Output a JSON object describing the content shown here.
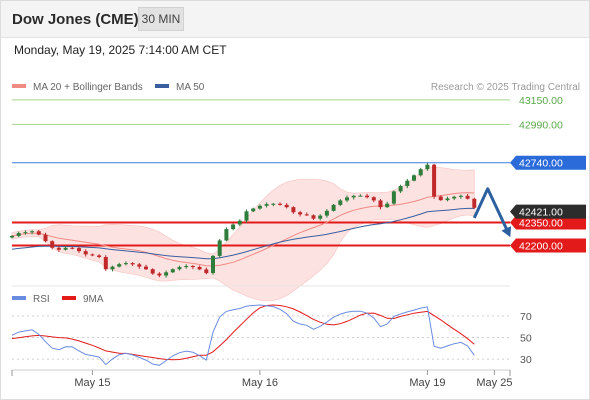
{
  "header": {
    "title": "Dow Jones (CME)",
    "timeframe": "30 MIN",
    "datetime": "Monday, May 19, 2025 7:14:00 AM CET"
  },
  "colors": {
    "ma20": "#f08a84",
    "ma50": "#3a5f9f",
    "bollinger_fill": "#fde2e2",
    "up_candle": "#2f7d3a",
    "down_candle": "#c0282a",
    "resistance_line": "#a3d48f",
    "pivot_line": "#3f7fe0",
    "pivot_label_bg": "#2a6ad9",
    "support_line": "#e21a1a",
    "support_label_bg": "#e21a1a",
    "current_price_bg": "#2c2c2c",
    "rsi_line": "#6a8ce0",
    "rsi_ma_line": "#e21a1a",
    "arrow": "#2b5fa0"
  },
  "chart_data": [
    {
      "type": "candlestick",
      "legend": {
        "items": [
          {
            "label": "MA 20 + Bollinger Bands",
            "color": "#f08a84"
          },
          {
            "label": "MA 50",
            "color": "#3a5f9f"
          }
        ],
        "placement": "top-left"
      },
      "watermark": "Research © 2025 Trading Central",
      "ylim": [
        42040,
        43280
      ],
      "x_ticks": [
        {
          "label": "May 15",
          "index": 12
        },
        {
          "label": "May 16",
          "index": 37
        },
        {
          "label": "May 19",
          "index": 62
        },
        {
          "label": "May 25",
          "index": 72
        }
      ],
      "levels": [
        {
          "label": "43150.00",
          "value": 43150,
          "kind": "resistance"
        },
        {
          "label": "42990.00",
          "value": 42990,
          "kind": "resistance"
        },
        {
          "label": "42740.00",
          "value": 42740,
          "kind": "pivot"
        },
        {
          "label": "42350.00",
          "value": 42350,
          "kind": "support"
        },
        {
          "label": "42200.00",
          "value": 42200,
          "kind": "support"
        }
      ],
      "current_price": {
        "label": "42421.00",
        "value": 42421
      },
      "forecast_path": [
        {
          "index": 69,
          "value": 42380
        },
        {
          "index": 71,
          "value": 42570
        },
        {
          "index": 74,
          "value": 42290
        }
      ],
      "closes": [
        42262,
        42281,
        42287,
        42293,
        42271,
        42228,
        42185,
        42172,
        42185,
        42183,
        42163,
        42142,
        42135,
        42125,
        42045,
        42062,
        42078,
        42085,
        42077,
        42062,
        42045,
        42017,
        42004,
        42025,
        42045,
        42059,
        42066,
        42060,
        42044,
        42020,
        42132,
        42233,
        42307,
        42337,
        42362,
        42423,
        42441,
        42459,
        42470,
        42472,
        42465,
        42450,
        42417,
        42403,
        42397,
        42375,
        42395,
        42426,
        42465,
        42494,
        42514,
        42524,
        42525,
        42515,
        42494,
        42450,
        42473,
        42553,
        42588,
        42623,
        42658,
        42698,
        42727,
        42519,
        42496,
        42507,
        42518,
        42524,
        42505,
        42446
      ]
    },
    {
      "type": "line",
      "legend": {
        "items": [
          {
            "label": "RSI",
            "color": "#6a8ce0"
          },
          {
            "label": "9MA",
            "color": "#e21a1a"
          }
        ],
        "placement": "top-left"
      },
      "ylim": [
        20,
        80
      ],
      "y_ticks": [
        70,
        50,
        30
      ],
      "series": [
        {
          "name": "RSI",
          "values": [
            52.0,
            55.0,
            56.1,
            57.1,
            52.9,
            46.1,
            40.2,
            38.7,
            41.4,
            41.3,
            37.5,
            34.3,
            33.3,
            31.9,
            25.0,
            30.2,
            34.1,
            35.4,
            33.9,
            31.6,
            29.1,
            25.5,
            24.3,
            28.7,
            33.0,
            36.0,
            37.4,
            36.4,
            33.2,
            29.1,
            54.9,
            69.0,
            74.1,
            75.6,
            76.8,
            79.0,
            79.5,
            80.0,
            79.3,
            78.5,
            76.0,
            72.0,
            65.0,
            62.5,
            61.3,
            57.6,
            60.3,
            64.3,
            68.7,
            71.6,
            73.4,
            74.2,
            74.3,
            72.4,
            68.0,
            60.0,
            62.6,
            69.5,
            71.7,
            73.6,
            75.3,
            77.1,
            78.2,
            42.0,
            40.1,
            42.2,
            44.3,
            45.5,
            42.2,
            33.6
          ]
        },
        {
          "name": "9MA",
          "values": [
            49.0,
            49.8,
            50.7,
            51.5,
            51.9,
            51.4,
            50.6,
            49.9,
            49.6,
            48.5,
            46.9,
            44.8,
            42.8,
            40.3,
            37.6,
            36.5,
            35.5,
            35.3,
            34.4,
            33.4,
            32.4,
            31.5,
            30.5,
            29.8,
            29.4,
            29.7,
            30.9,
            32.3,
            33.6,
            33.7,
            36.8,
            42.2,
            48.1,
            54.6,
            60.7,
            66.8,
            72.7,
            77.4,
            79.5,
            80.0,
            79.5,
            78.3,
            76.4,
            73.5,
            70.2,
            66.7,
            64.1,
            62.2,
            61.6,
            62.7,
            64.9,
            67.7,
            70.7,
            72.4,
            72.5,
            70.4,
            67.7,
            67.5,
            69.5,
            71.0,
            72.4,
            73.3,
            74.1,
            70.2,
            66.2,
            61.8,
            57.6,
            53.5,
            48.9,
            43.8
          ]
        }
      ]
    }
  ]
}
